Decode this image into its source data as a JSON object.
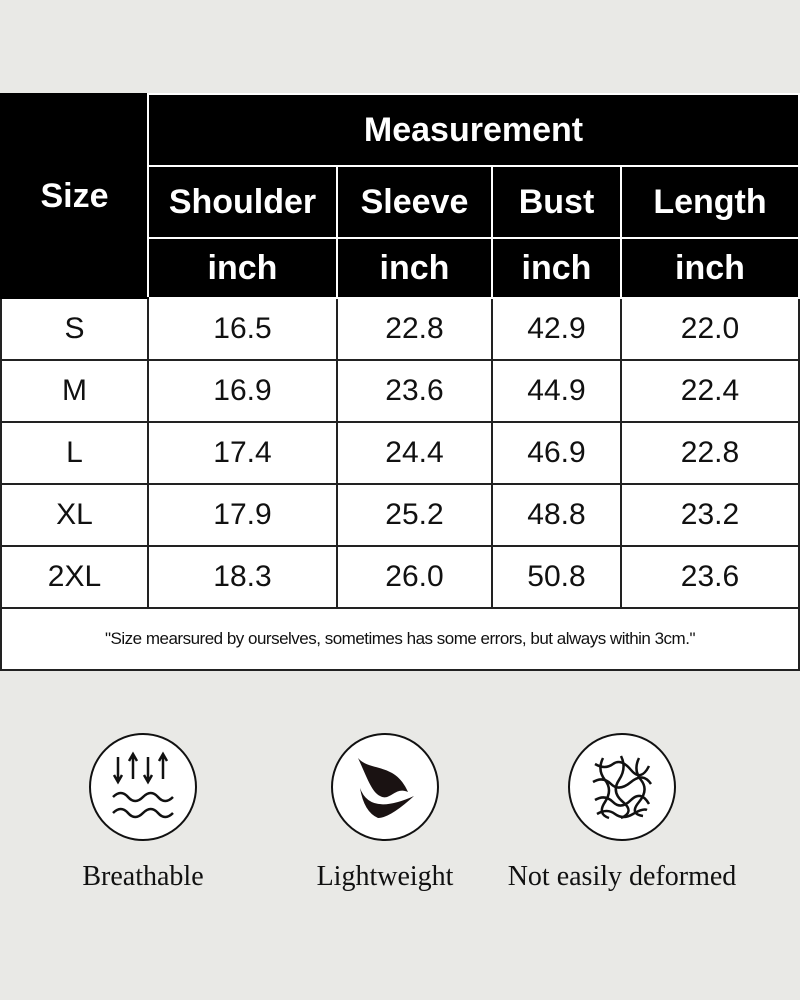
{
  "table": {
    "size_header": "Size",
    "group_header": "Measurement",
    "columns": [
      "Shoulder",
      "Sleeve",
      "Bust",
      "Length"
    ],
    "units": [
      "inch",
      "inch",
      "inch",
      "inch"
    ],
    "rows": [
      {
        "size": "S",
        "values": [
          "16.5",
          "22.8",
          "42.9",
          "22.0"
        ]
      },
      {
        "size": "M",
        "values": [
          "16.9",
          "23.6",
          "44.9",
          "22.4"
        ]
      },
      {
        "size": "L",
        "values": [
          "17.4",
          "24.4",
          "46.9",
          "22.8"
        ]
      },
      {
        "size": "XL",
        "values": [
          "17.9",
          "25.2",
          "48.8",
          "23.2"
        ]
      },
      {
        "size": "2XL",
        "values": [
          "18.3",
          "26.0",
          "50.8",
          "23.6"
        ]
      }
    ],
    "note": "\"Size mearsured by ourselves, sometimes has some errors, but always within 3cm.\""
  },
  "features": [
    {
      "label": "Breathable",
      "icon": "breathable-arrows-waves-icon"
    },
    {
      "label": "Lightweight",
      "icon": "leaf-icon"
    },
    {
      "label": "Not easily deformed",
      "icon": "fiber-mesh-icon"
    }
  ]
}
